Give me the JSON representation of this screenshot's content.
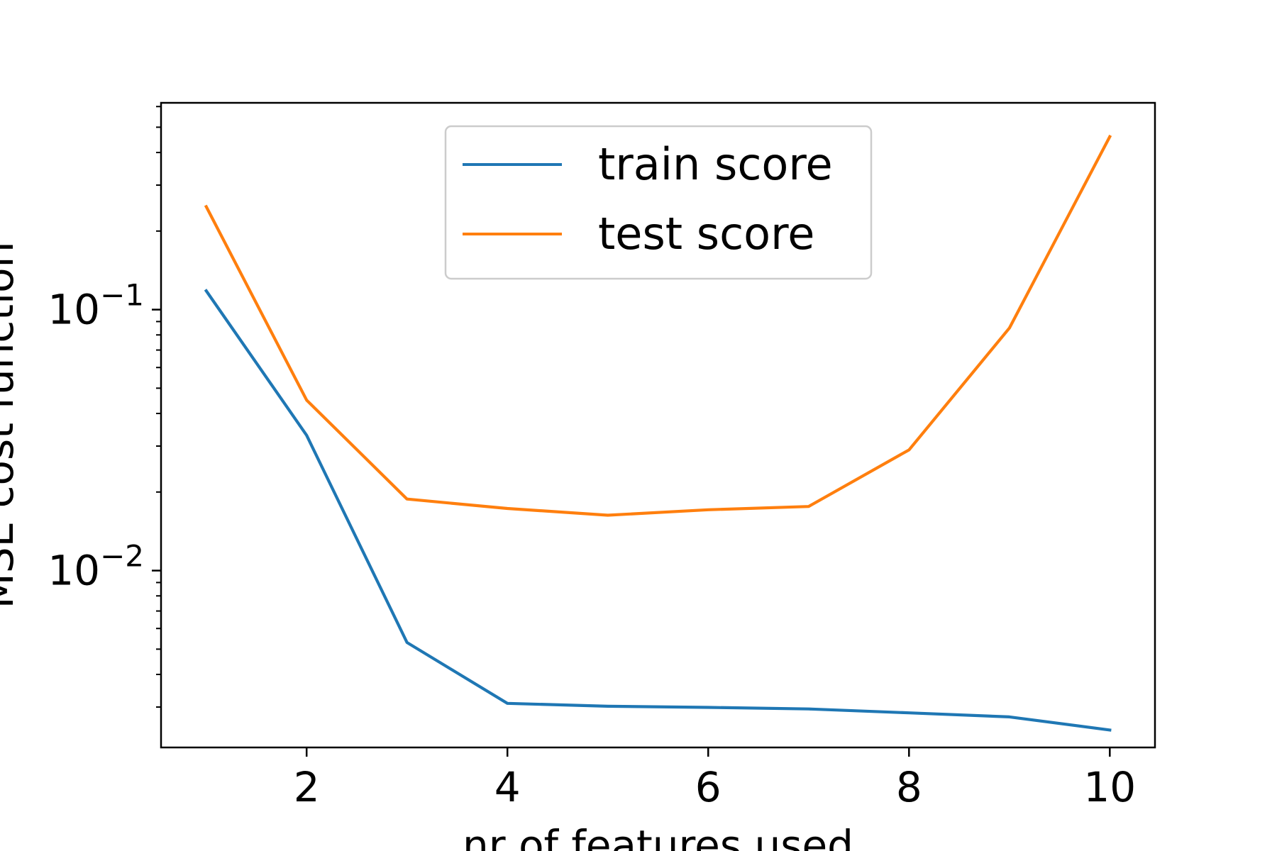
{
  "chart_data": {
    "type": "line",
    "title": "",
    "xlabel": "nr of features used",
    "ylabel": "MSE cost function",
    "y_scale": "log",
    "xlim": [
      0.55,
      10.45
    ],
    "ylim": [
      0.0021,
      0.62
    ],
    "xticks": [
      {
        "value": 2,
        "label": "2"
      },
      {
        "value": 4,
        "label": "4"
      },
      {
        "value": 6,
        "label": "6"
      },
      {
        "value": 8,
        "label": "8"
      },
      {
        "value": 10,
        "label": "10"
      }
    ],
    "yticks": [
      {
        "value": 0.01,
        "base": "10",
        "exponent": "−2"
      },
      {
        "value": 0.1,
        "base": "10",
        "exponent": "−1"
      }
    ],
    "grid": false,
    "legend_position": "upper-center",
    "x": [
      1,
      2,
      3,
      4,
      5,
      6,
      7,
      8,
      9,
      10
    ],
    "series": [
      {
        "name": "train score",
        "color": "#1f77b4",
        "values": [
          0.118,
          0.033,
          0.0053,
          0.0031,
          0.00302,
          0.00299,
          0.00295,
          0.00285,
          0.00275,
          0.00245
        ]
      },
      {
        "name": "test score",
        "color": "#ff7f0e",
        "values": [
          0.248,
          0.045,
          0.0188,
          0.0173,
          0.0163,
          0.0171,
          0.0176,
          0.029,
          0.085,
          0.46
        ]
      }
    ]
  }
}
